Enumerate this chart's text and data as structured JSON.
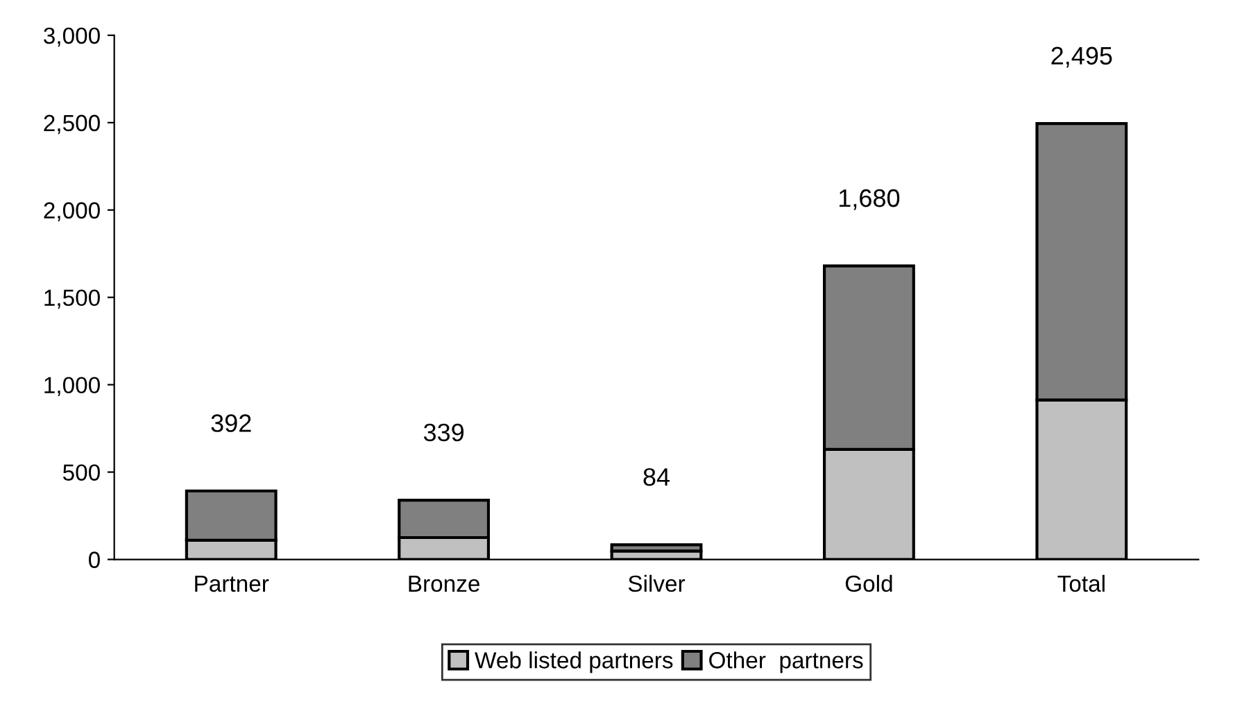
{
  "chart_data": {
    "type": "bar",
    "stacked": true,
    "categories": [
      "Partner",
      "Bronze",
      "Silver",
      "Gold",
      "Total"
    ],
    "series": [
      {
        "name": "Web listed partners",
        "color": "#c0c0c0",
        "values": [
          110,
          125,
          48,
          630,
          913
        ]
      },
      {
        "name": "Other  partners",
        "color": "#808080",
        "values": [
          282,
          214,
          36,
          1050,
          1582
        ]
      }
    ],
    "totals": [
      "392",
      "339",
      "84",
      "1,680",
      "2,495"
    ],
    "ylim": [
      0,
      3000
    ],
    "yticks": [
      0,
      {
        "value": 500,
        "label": "500"
      },
      {
        "value": 1000,
        "label": "1,000"
      },
      {
        "value": 1500,
        "label": "1,500"
      },
      {
        "value": 2000,
        "label": "2,000"
      },
      {
        "value": 2500,
        "label": "2,500"
      },
      {
        "value": 3000,
        "label": "3,000"
      }
    ],
    "grid": false,
    "legend": "bottom"
  }
}
